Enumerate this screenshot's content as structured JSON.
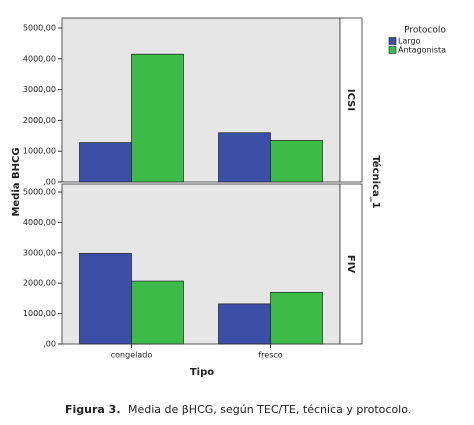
{
  "chart_data": {
    "type": "bar",
    "y_label": "Media BHCG",
    "x_label": "Tipo",
    "facet_label": "Técnica_1",
    "legend_title": "Protocolo",
    "categories": [
      "congelado",
      "fresco"
    ],
    "ylim": [
      0,
      5000
    ],
    "yticks": [
      {
        "value": 0,
        "label": ",00"
      },
      {
        "value": 1000,
        "label": "1000,00"
      },
      {
        "value": 2000,
        "label": "2000,00"
      },
      {
        "value": 3000,
        "label": "3000,00"
      },
      {
        "value": 4000,
        "label": "4000,00"
      },
      {
        "value": 5000,
        "label": "5000,00"
      }
    ],
    "panels": [
      {
        "name": "ICSI",
        "series": [
          {
            "name": "Largo",
            "color": "#3c4fa6",
            "values": [
              1280,
              1600
            ]
          },
          {
            "name": "Antagonista",
            "color": "#3dbb48",
            "values": [
              4150,
              1350
            ]
          }
        ]
      },
      {
        "name": "FIV",
        "series": [
          {
            "name": "Largo",
            "color": "#3c4fa6",
            "values": [
              2980,
              1320
            ]
          },
          {
            "name": "Antagonista",
            "color": "#3dbb48",
            "values": [
              2070,
              1700
            ]
          }
        ]
      }
    ]
  },
  "caption": {
    "label": "Figura 3.",
    "text": "Media de βHCG, según TEC/TE, técnica y protocolo."
  }
}
